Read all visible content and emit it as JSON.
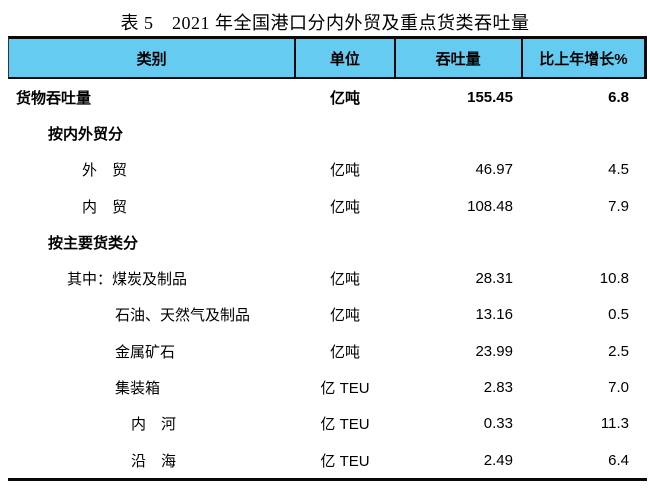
{
  "title": "表 5　2021 年全国港口分内外贸及重点货类吞吐量",
  "colors": {
    "header_bg": "#66CBF0",
    "border": "#0a0a0a",
    "text": "#000000"
  },
  "table": {
    "headers": {
      "category": "类别",
      "unit": "单位",
      "throughput": "吞吐量",
      "growth": "比上年增长%"
    },
    "rows": [
      {
        "category": "货物吞吐量",
        "unit": "亿吨",
        "throughput": "155.45",
        "growth": "6.8"
      },
      {
        "category": "按内外贸分",
        "unit": "",
        "throughput": "",
        "growth": ""
      },
      {
        "category": "外　贸",
        "unit": "亿吨",
        "throughput": "46.97",
        "growth": "4.5"
      },
      {
        "category": "内　贸",
        "unit": "亿吨",
        "throughput": "108.48",
        "growth": "7.9"
      },
      {
        "category": "按主要货类分",
        "unit": "",
        "throughput": "",
        "growth": ""
      },
      {
        "category": "其中：煤炭及制品",
        "unit": "亿吨",
        "throughput": "28.31",
        "growth": "10.8"
      },
      {
        "category": "石油、天然气及制品",
        "unit": "亿吨",
        "throughput": "13.16",
        "growth": "0.5"
      },
      {
        "category": "金属矿石",
        "unit": "亿吨",
        "throughput": "23.99",
        "growth": "2.5"
      },
      {
        "category": "集装箱",
        "unit": "亿 TEU",
        "throughput": "2.83",
        "growth": "7.0"
      },
      {
        "category": "内　河",
        "unit": "亿 TEU",
        "throughput": "0.33",
        "growth": "11.3"
      },
      {
        "category": "沿　海",
        "unit": "亿 TEU",
        "throughput": "2.49",
        "growth": "6.4"
      }
    ]
  }
}
